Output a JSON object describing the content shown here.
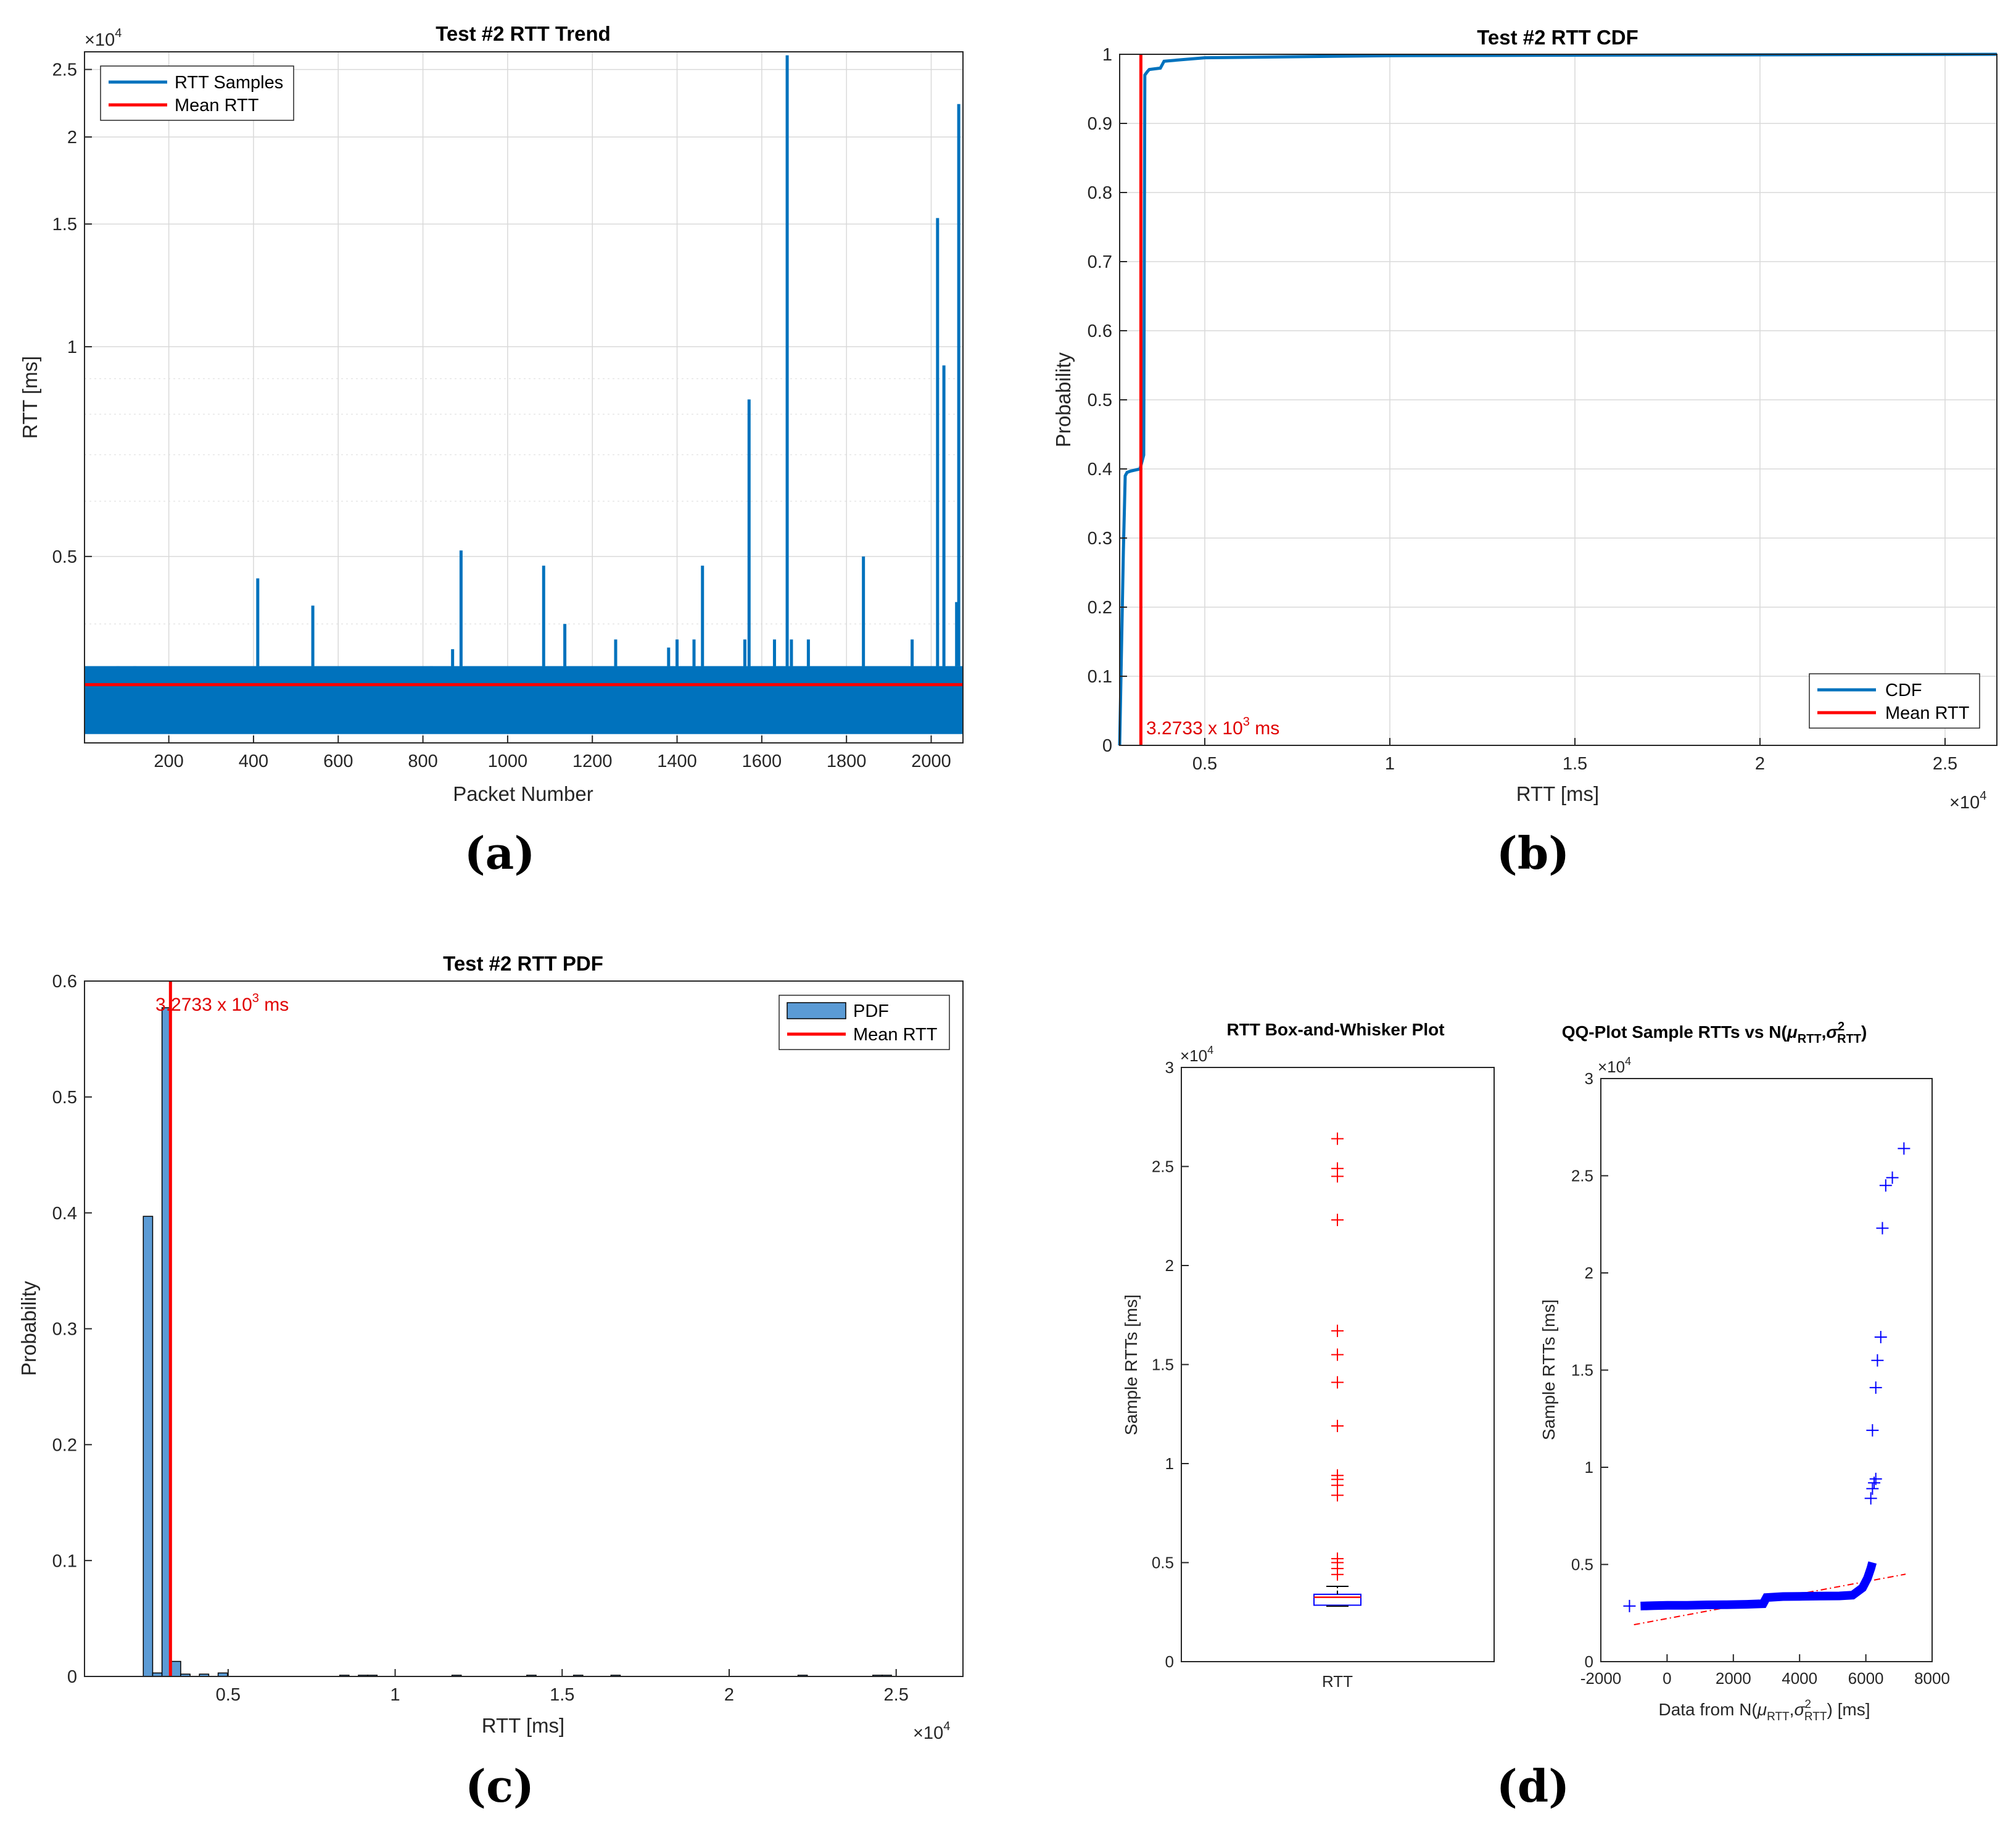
{
  "colors": {
    "series": "#0072BD",
    "mean": "#ff0000",
    "grid": "#d9d9d9",
    "axis": "#262626",
    "bar_fill": "#5b9bd5",
    "outlier": "#ff0000",
    "box": "#0000ff",
    "qq_points": "#0000ff"
  },
  "panels": {
    "a": "(a)",
    "b": "(b)",
    "c": "(c)",
    "d": "(d)"
  },
  "chart_data": [
    {
      "id": "a",
      "type": "line",
      "title": "Test #2 RTT Trend",
      "xlabel": "Packet Number",
      "ylabel": "RTT [ms]",
      "exponent": "×10",
      "exponent_power": "4",
      "yscale": "log",
      "xlim": [
        1,
        2075
      ],
      "ylim": [
        2700,
        26500
      ],
      "grid": true,
      "legend_position": "top-left",
      "x_ticks": [
        200,
        400,
        600,
        800,
        1000,
        1200,
        1400,
        1600,
        1800,
        2000
      ],
      "x_tick_labels": [
        "200",
        "400",
        "600",
        "800",
        "1000",
        "1200",
        "1400",
        "1600",
        "1800",
        "2000"
      ],
      "y_ticks": [
        5000,
        10000,
        15000,
        20000,
        25000
      ],
      "y_tick_labels": [
        "0.5",
        "1",
        "1.5",
        "2",
        "2.5"
      ],
      "series": [
        {
          "name": "RTT Samples",
          "band": [
            2780,
            3480
          ],
          "spikes": [
            [
              80,
              3470
            ],
            [
              120,
              3450
            ],
            [
              410,
              4650
            ],
            [
              540,
              4250
            ],
            [
              820,
              3420
            ],
            [
              870,
              3680
            ],
            [
              890,
              5100
            ],
            [
              1085,
              4850
            ],
            [
              1135,
              4000
            ],
            [
              1255,
              3800
            ],
            [
              1380,
              3700
            ],
            [
              1400,
              3800
            ],
            [
              1440,
              3800
            ],
            [
              1460,
              4850
            ],
            [
              1560,
              3800
            ],
            [
              1570,
              8400
            ],
            [
              1630,
              3800
            ],
            [
              1660,
              26200
            ],
            [
              1670,
              3800
            ],
            [
              1710,
              3800
            ],
            [
              1840,
              5000
            ],
            [
              1955,
              3800
            ],
            [
              2015,
              15300
            ],
            [
              2030,
              9400
            ],
            [
              2060,
              4300
            ],
            [
              2065,
              22300
            ]
          ]
        },
        {
          "name": "Mean RTT",
          "value": 3273.3
        }
      ]
    },
    {
      "id": "b",
      "type": "line",
      "title": "Test #2 RTT CDF",
      "xlabel": "RTT [ms]",
      "ylabel": "Probability",
      "exponent": "×10",
      "exponent_power": "4",
      "xlim": [
        2700,
        26400
      ],
      "ylim": [
        0,
        1
      ],
      "grid": true,
      "legend_position": "bottom-right",
      "x_ticks": [
        5000,
        10000,
        15000,
        20000,
        25000
      ],
      "x_tick_labels": [
        "0.5",
        "1",
        "1.5",
        "2",
        "2.5"
      ],
      "y_ticks": [
        0,
        0.1,
        0.2,
        0.3,
        0.4,
        0.5,
        0.6,
        0.7,
        0.8,
        0.9,
        1
      ],
      "y_tick_labels": [
        "0",
        "0.1",
        "0.2",
        "0.3",
        "0.4",
        "0.5",
        "0.6",
        "0.7",
        "0.8",
        "0.9",
        "1"
      ],
      "series": [
        {
          "name": "CDF",
          "x": [
            2700,
            2800,
            2850,
            2900,
            3000,
            3250,
            3350,
            3380,
            3450,
            3500,
            3800,
            3900,
            5000,
            10000,
            26400
          ],
          "y": [
            0,
            0.28,
            0.39,
            0.395,
            0.397,
            0.4,
            0.42,
            0.97,
            0.975,
            0.978,
            0.98,
            0.99,
            0.995,
            0.998,
            1.0
          ]
        },
        {
          "name": "Mean RTT",
          "value": 3273.3
        }
      ],
      "annotation": {
        "text": "3.2733 x 10",
        "power": "3",
        "unit": " ms"
      }
    },
    {
      "id": "c",
      "type": "bar",
      "title": "Test #2 RTT PDF",
      "xlabel": "RTT [ms]",
      "ylabel": "Probability",
      "exponent": "×10",
      "exponent_power": "4",
      "xlim": [
        700,
        27000
      ],
      "ylim": [
        0,
        0.6
      ],
      "grid": true,
      "legend_position": "top-right",
      "x_ticks": [
        5000,
        10000,
        15000,
        20000,
        25000
      ],
      "x_tick_labels": [
        "0.5",
        "1",
        "1.5",
        "2",
        "2.5"
      ],
      "y_ticks": [
        0,
        0.1,
        0.2,
        0.3,
        0.4,
        0.5,
        0.6
      ],
      "y_tick_labels": [
        "0",
        "0.1",
        "0.2",
        "0.3",
        "0.4",
        "0.5",
        "0.6"
      ],
      "bin_width": 280,
      "bins": [
        [
          2460,
          0.397
        ],
        [
          2740,
          0.003
        ],
        [
          3020,
          0.577
        ],
        [
          3300,
          0.013
        ],
        [
          3580,
          0.002
        ],
        [
          4140,
          0.002
        ],
        [
          4700,
          0.003
        ],
        [
          8340,
          0.0005
        ],
        [
          8900,
          0.0005
        ],
        [
          9180,
          0.0005
        ],
        [
          11700,
          0.0005
        ],
        [
          13940,
          0.0005
        ],
        [
          15340,
          0.0005
        ],
        [
          16460,
          0.0005
        ],
        [
          22060,
          0.0005
        ],
        [
          24300,
          0.0005
        ],
        [
          24580,
          0.0005
        ]
      ],
      "series": [
        {
          "name": "PDF"
        },
        {
          "name": "Mean RTT",
          "value": 3273.3
        }
      ],
      "annotation": {
        "text": "3.2733 x 10",
        "power": "3",
        "unit": " ms"
      }
    },
    {
      "id": "d1",
      "type": "box",
      "title": "RTT Box-and-Whisker Plot",
      "ylabel": "Sample RTTs [ms]",
      "xlabel": "",
      "category": "RTT",
      "exponent": "×10",
      "exponent_power": "4",
      "ylim": [
        0,
        30000
      ],
      "y_ticks": [
        0,
        5000,
        10000,
        15000,
        20000,
        25000,
        30000
      ],
      "y_tick_labels": [
        "0",
        "0.5",
        "1",
        "1.5",
        "2",
        "2.5",
        "3"
      ],
      "box": {
        "q1": 2850,
        "median": 3250,
        "q3": 3400,
        "whisker_low": 2800,
        "whisker_high": 3800
      },
      "outliers": [
        26400,
        24900,
        24500,
        22300,
        16700,
        15500,
        14100,
        11900,
        9400,
        9200,
        8900,
        8400,
        5200,
        5000,
        4700,
        4400
      ]
    },
    {
      "id": "d2",
      "type": "scatter",
      "title": "QQ-Plot Sample RTTs vs N(",
      "title_mu": "μ",
      "title_sub": "RTT",
      "title_sigma": "σ",
      "title_sup": "2",
      "title_end": ")",
      "xlabel": "Data from N(",
      "xlabel_end": ") [ms]",
      "ylabel": "Sample RTTs [ms]",
      "exponent": "×10",
      "exponent_power": "4",
      "xlim": [
        -2000,
        8000
      ],
      "ylim": [
        0,
        30000
      ],
      "x_ticks": [
        -2000,
        0,
        2000,
        4000,
        6000,
        8000
      ],
      "x_tick_labels": [
        "-2000",
        "0",
        "2000",
        "4000",
        "6000",
        "8000"
      ],
      "y_ticks": [
        0,
        5000,
        10000,
        15000,
        20000,
        25000,
        30000
      ],
      "y_tick_labels": [
        "0",
        "0.5",
        "1",
        "1.5",
        "2",
        "2.5",
        "3"
      ],
      "steps": [
        [
          -800,
          2860
        ],
        [
          -400,
          2880
        ],
        [
          0,
          2900
        ],
        [
          600,
          2900
        ],
        [
          1200,
          2920
        ],
        [
          1800,
          2930
        ],
        [
          2400,
          2950
        ],
        [
          2900,
          2980
        ],
        [
          3000,
          3300
        ],
        [
          3500,
          3350
        ],
        [
          4000,
          3360
        ],
        [
          4600,
          3370
        ],
        [
          5200,
          3380
        ],
        [
          5600,
          3420
        ],
        [
          5900,
          3800
        ],
        [
          6050,
          4300
        ],
        [
          6150,
          4800
        ],
        [
          6200,
          5100
        ]
      ],
      "points": [
        [
          6150,
          8400
        ],
        [
          6200,
          8900
        ],
        [
          6250,
          9200
        ],
        [
          6300,
          9400
        ],
        [
          6200,
          11900
        ],
        [
          6300,
          14100
        ],
        [
          6350,
          15500
        ],
        [
          6450,
          16700
        ],
        [
          6500,
          22300
        ],
        [
          6600,
          24500
        ],
        [
          6800,
          24900
        ],
        [
          7150,
          26400
        ]
      ],
      "ref_line": [
        [
          -1000,
          1900
        ],
        [
          7200,
          4500
        ]
      ]
    }
  ]
}
